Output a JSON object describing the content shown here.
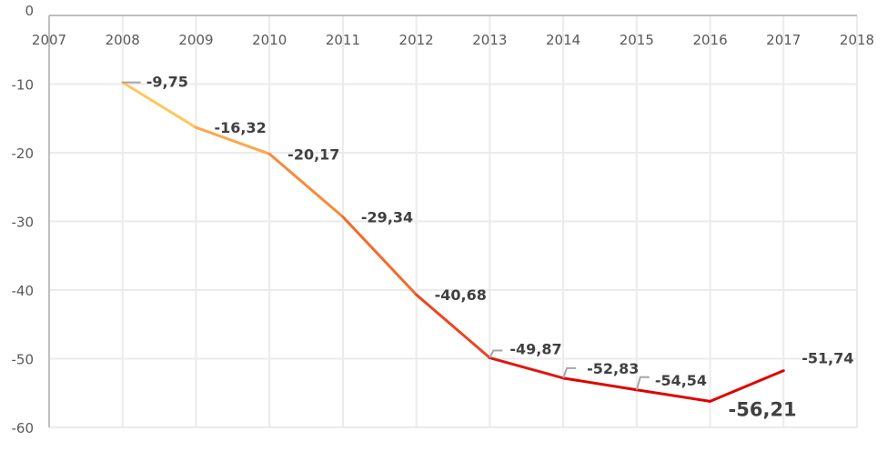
{
  "chart_data": {
    "type": "line",
    "title": "",
    "xlabel": "",
    "ylabel": "",
    "x": [
      2008,
      2009,
      2010,
      2011,
      2012,
      2013,
      2014,
      2015,
      2016,
      2017
    ],
    "values": [
      -9.75,
      -16.32,
      -20.17,
      -29.34,
      -40.68,
      -49.87,
      -52.83,
      -54.54,
      -56.21,
      -51.74
    ],
    "data_labels": [
      "-9,75",
      "-16,32",
      "-20,17",
      "-29,34",
      "-40,68",
      "-49,87",
      "-52,83",
      "-54,54",
      "-56,21",
      "-51,74"
    ],
    "xlim": [
      2007,
      2018
    ],
    "ylim": [
      -60,
      0
    ],
    "x_ticks": [
      "2007",
      "2008",
      "2009",
      "2010",
      "2011",
      "2012",
      "2013",
      "2014",
      "2015",
      "2016",
      "2017",
      "2018"
    ],
    "y_ticks": [
      "0",
      "-10",
      "-20",
      "-30",
      "-40",
      "-50",
      "-60"
    ],
    "x_axis_position": "top",
    "grid": true,
    "line_colors": [
      "#FFC65C",
      "#FBA84A",
      "#F9893A",
      "#F46A2C",
      "#EE4420",
      "#E21510",
      "#E00000",
      "#E00000",
      "#E00000"
    ],
    "grid_color": "#EBEBEB",
    "axis_color": "#BFBFBF",
    "label_color": "#404040"
  }
}
